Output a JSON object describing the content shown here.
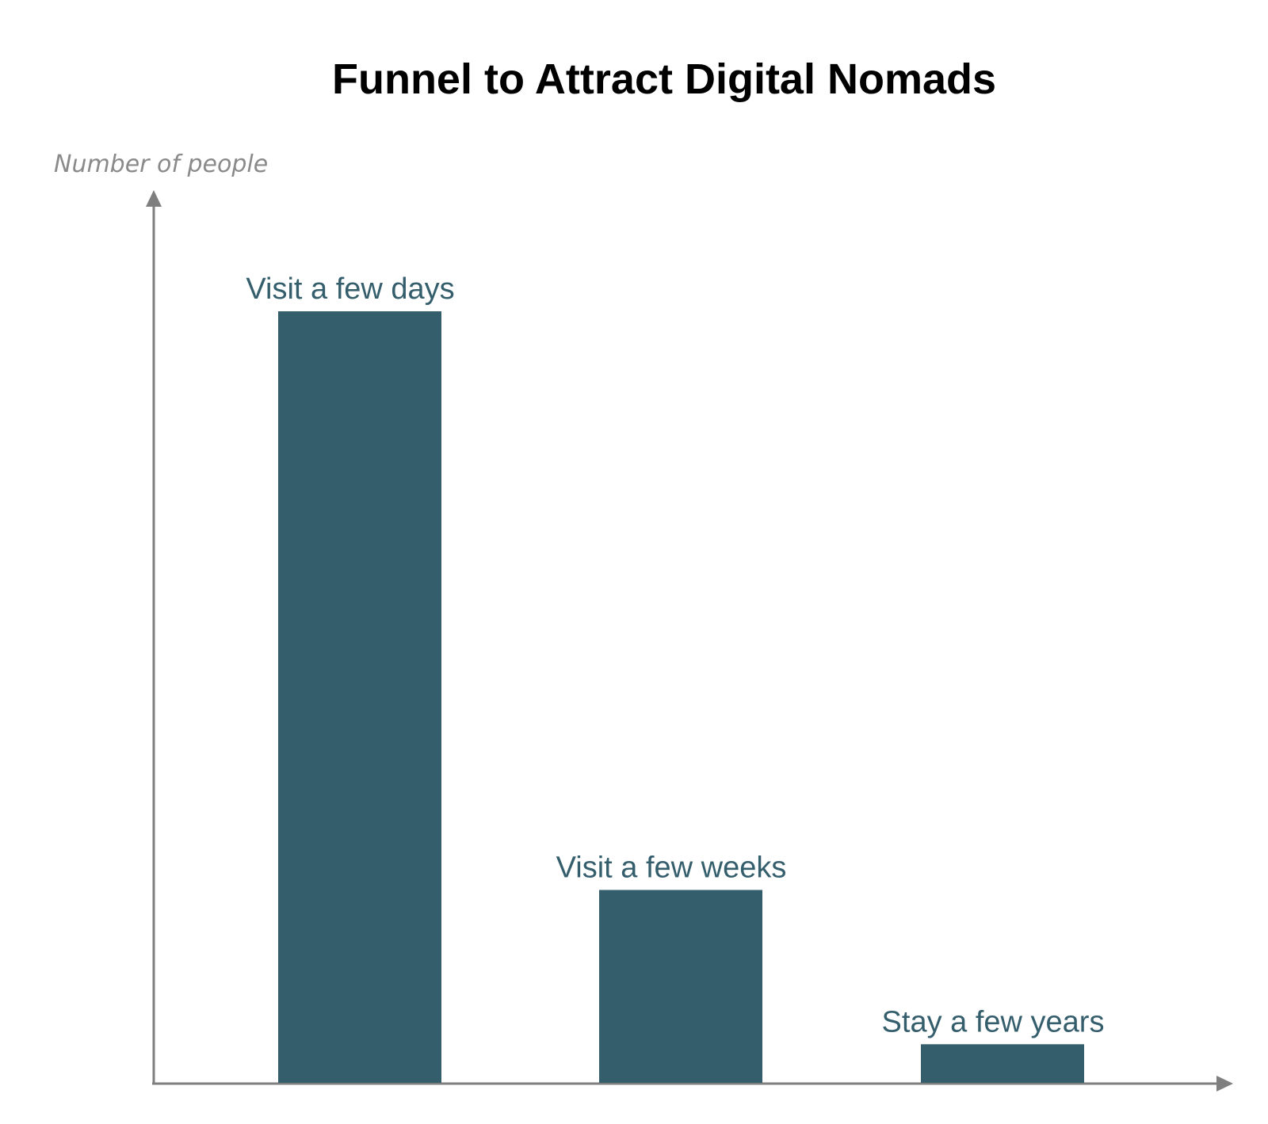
{
  "chart_data": {
    "type": "bar",
    "title": "Funnel to Attract Digital Nomads",
    "ylabel": "Number of people",
    "xlabel": "",
    "categories": [
      "Visit a few days",
      "Visit a few weeks",
      "Stay a few years"
    ],
    "values": [
      100,
      25,
      5
    ],
    "ylim": [
      0,
      100
    ],
    "grid": false,
    "legend": "none",
    "colors": {
      "bar": "#355e6d",
      "label": "#355e6d",
      "axis": "#7f7f7f"
    }
  }
}
